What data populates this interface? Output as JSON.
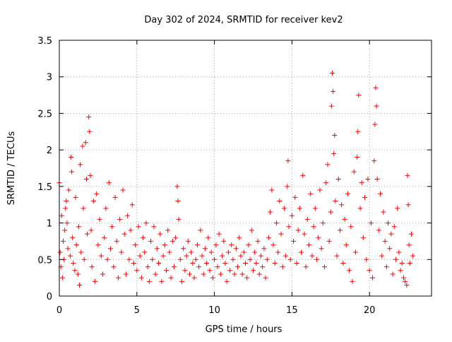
{
  "chart_data": {
    "type": "scatter",
    "title": "Day 302 of 2024, SRMTID for receiver kev2",
    "xlabel": "GPS time / hours",
    "ylabel": "SRMTID / TECUs",
    "xlim": [
      0,
      24
    ],
    "ylim": [
      0,
      3.5
    ],
    "x_ticks": [
      0,
      5,
      10,
      15,
      20
    ],
    "x_tick_labels": [
      "0",
      "5",
      "10",
      "15",
      "20"
    ],
    "y_ticks": [
      0,
      0.5,
      1,
      1.5,
      2,
      2.5,
      3,
      3.5
    ],
    "y_tick_labels": [
      "0",
      "0.5",
      "1",
      "1.5",
      "2",
      "2.5",
      "3",
      "3.5"
    ],
    "grid": true,
    "marker": "+",
    "marker_color": "#ff0000",
    "series": [
      {
        "name": "SRMTID",
        "color": "#ff0000",
        "points": [
          [
            0.0,
            1.55
          ],
          [
            0.05,
            0.6
          ],
          [
            0.1,
            0.4
          ],
          [
            0.15,
            1.1
          ],
          [
            0.2,
            0.25
          ],
          [
            0.25,
            0.75
          ],
          [
            0.3,
            0.5
          ],
          [
            0.35,
            0.9
          ],
          [
            0.4,
            1.2
          ],
          [
            0.45,
            1.3
          ],
          [
            0.5,
            1.0
          ],
          [
            0.55,
            0.65
          ],
          [
            0.6,
            1.45
          ],
          [
            0.7,
            0.55
          ],
          [
            0.75,
            1.9
          ],
          [
            0.8,
            1.7
          ],
          [
            0.85,
            0.8
          ],
          [
            0.9,
            0.45
          ],
          [
            1.0,
            0.35
          ],
          [
            1.05,
            1.35
          ],
          [
            1.1,
            0.7
          ],
          [
            1.2,
            0.3
          ],
          [
            1.25,
            0.95
          ],
          [
            1.3,
            0.15
          ],
          [
            1.35,
            1.8
          ],
          [
            1.4,
            0.6
          ],
          [
            1.5,
            2.05
          ],
          [
            1.55,
            1.2
          ],
          [
            1.6,
            0.5
          ],
          [
            1.7,
            2.1
          ],
          [
            1.75,
            1.6
          ],
          [
            1.8,
            0.85
          ],
          [
            1.9,
            2.45
          ],
          [
            1.95,
            2.25
          ],
          [
            2.0,
            1.65
          ],
          [
            2.05,
            0.9
          ],
          [
            2.1,
            0.4
          ],
          [
            2.2,
            1.3
          ],
          [
            2.3,
            0.2
          ],
          [
            2.4,
            1.4
          ],
          [
            2.5,
            0.7
          ],
          [
            2.6,
            1.05
          ],
          [
            2.7,
            0.55
          ],
          [
            2.8,
            0.3
          ],
          [
            2.9,
            0.8
          ],
          [
            3.0,
            1.2
          ],
          [
            3.1,
            0.5
          ],
          [
            3.2,
            1.55
          ],
          [
            3.3,
            0.65
          ],
          [
            3.4,
            0.95
          ],
          [
            3.5,
            0.4
          ],
          [
            3.6,
            1.35
          ],
          [
            3.7,
            0.75
          ],
          [
            3.8,
            0.25
          ],
          [
            3.9,
            1.05
          ],
          [
            4.0,
            0.6
          ],
          [
            4.1,
            1.45
          ],
          [
            4.2,
            0.85
          ],
          [
            4.3,
            0.3
          ],
          [
            4.4,
            1.1
          ],
          [
            4.5,
            0.5
          ],
          [
            4.6,
            0.9
          ],
          [
            4.7,
            1.25
          ],
          [
            4.8,
            0.45
          ],
          [
            4.9,
            0.7
          ],
          [
            5.0,
            0.35
          ],
          [
            5.1,
            0.95
          ],
          [
            5.2,
            0.55
          ],
          [
            5.3,
            0.25
          ],
          [
            5.4,
            0.8
          ],
          [
            5.5,
            0.6
          ],
          [
            5.6,
            1.0
          ],
          [
            5.7,
            0.4
          ],
          [
            5.8,
            0.2
          ],
          [
            5.9,
            0.75
          ],
          [
            6.0,
            0.5
          ],
          [
            6.1,
            0.95
          ],
          [
            6.2,
            0.3
          ],
          [
            6.3,
            0.65
          ],
          [
            6.4,
            0.45
          ],
          [
            6.5,
            0.85
          ],
          [
            6.6,
            0.2
          ],
          [
            6.7,
            0.55
          ],
          [
            6.8,
            0.7
          ],
          [
            6.9,
            0.35
          ],
          [
            7.0,
            0.9
          ],
          [
            7.1,
            0.6
          ],
          [
            7.2,
            0.25
          ],
          [
            7.3,
            0.75
          ],
          [
            7.4,
            0.4
          ],
          [
            7.5,
            0.8
          ],
          [
            7.6,
            1.5
          ],
          [
            7.65,
            1.3
          ],
          [
            7.7,
            1.05
          ],
          [
            7.8,
            0.5
          ],
          [
            7.9,
            0.2
          ],
          [
            8.0,
            0.65
          ],
          [
            8.1,
            0.35
          ],
          [
            8.2,
            0.55
          ],
          [
            8.3,
            0.75
          ],
          [
            8.4,
            0.3
          ],
          [
            8.5,
            0.6
          ],
          [
            8.6,
            0.45
          ],
          [
            8.7,
            0.25
          ],
          [
            8.8,
            0.5
          ],
          [
            8.9,
            0.7
          ],
          [
            9.0,
            0.4
          ],
          [
            9.1,
            0.9
          ],
          [
            9.2,
            0.55
          ],
          [
            9.3,
            0.3
          ],
          [
            9.4,
            0.65
          ],
          [
            9.5,
            0.45
          ],
          [
            9.6,
            0.8
          ],
          [
            9.7,
            0.35
          ],
          [
            9.8,
            0.6
          ],
          [
            9.9,
            0.25
          ],
          [
            10.0,
            0.5
          ],
          [
            10.1,
            0.7
          ],
          [
            10.2,
            0.4
          ],
          [
            10.3,
            0.85
          ],
          [
            10.4,
            0.3
          ],
          [
            10.5,
            0.55
          ],
          [
            10.6,
            0.75
          ],
          [
            10.7,
            0.45
          ],
          [
            10.8,
            0.2
          ],
          [
            10.9,
            0.6
          ],
          [
            11.0,
            0.35
          ],
          [
            11.1,
            0.7
          ],
          [
            11.2,
            0.5
          ],
          [
            11.3,
            0.3
          ],
          [
            11.4,
            0.65
          ],
          [
            11.5,
            0.4
          ],
          [
            11.6,
            0.8
          ],
          [
            11.7,
            0.55
          ],
          [
            11.8,
            0.3
          ],
          [
            11.9,
            0.6
          ],
          [
            12.0,
            0.45
          ],
          [
            12.1,
            0.25
          ],
          [
            12.2,
            0.7
          ],
          [
            12.3,
            0.5
          ],
          [
            12.4,
            0.9
          ],
          [
            12.5,
            0.35
          ],
          [
            12.6,
            0.6
          ],
          [
            12.7,
            0.45
          ],
          [
            12.8,
            0.75
          ],
          [
            12.9,
            0.3
          ],
          [
            13.0,
            0.55
          ],
          [
            13.1,
            0.4
          ],
          [
            13.2,
            0.65
          ],
          [
            13.3,
            0.25
          ],
          [
            13.4,
            0.5
          ],
          [
            13.5,
            0.8
          ],
          [
            13.6,
            1.15
          ],
          [
            13.7,
            1.45
          ],
          [
            13.8,
            0.7
          ],
          [
            13.9,
            0.45
          ],
          [
            14.0,
            1.0
          ],
          [
            14.1,
            0.6
          ],
          [
            14.2,
            1.3
          ],
          [
            14.3,
            0.85
          ],
          [
            14.4,
            0.4
          ],
          [
            14.5,
            1.2
          ],
          [
            14.6,
            0.55
          ],
          [
            14.7,
            1.5
          ],
          [
            14.75,
            1.85
          ],
          [
            14.8,
            0.95
          ],
          [
            14.9,
            0.5
          ],
          [
            15.0,
            1.1
          ],
          [
            15.1,
            0.75
          ],
          [
            15.2,
            1.35
          ],
          [
            15.3,
            0.45
          ],
          [
            15.4,
            0.9
          ],
          [
            15.5,
            1.2
          ],
          [
            15.6,
            0.6
          ],
          [
            15.7,
            1.65
          ],
          [
            15.8,
            0.85
          ],
          [
            15.9,
            0.4
          ],
          [
            16.0,
            1.05
          ],
          [
            16.1,
            0.7
          ],
          [
            16.2,
            1.4
          ],
          [
            16.3,
            0.55
          ],
          [
            16.4,
            0.95
          ],
          [
            16.5,
            1.2
          ],
          [
            16.6,
            0.5
          ],
          [
            16.7,
            0.8
          ],
          [
            16.8,
            1.45
          ],
          [
            16.9,
            0.65
          ],
          [
            17.0,
            1.0
          ],
          [
            17.1,
            0.4
          ],
          [
            17.2,
            1.55
          ],
          [
            17.3,
            1.8
          ],
          [
            17.4,
            0.75
          ],
          [
            17.5,
            1.15
          ],
          [
            17.55,
            2.6
          ],
          [
            17.6,
            3.05
          ],
          [
            17.65,
            2.8
          ],
          [
            17.7,
            1.95
          ],
          [
            17.75,
            2.2
          ],
          [
            17.8,
            1.3
          ],
          [
            17.9,
            0.55
          ],
          [
            18.0,
            1.6
          ],
          [
            18.1,
            0.9
          ],
          [
            18.2,
            1.25
          ],
          [
            18.3,
            0.45
          ],
          [
            18.4,
            1.05
          ],
          [
            18.5,
            0.7
          ],
          [
            18.6,
            1.4
          ],
          [
            18.7,
            0.35
          ],
          [
            18.8,
            0.95
          ],
          [
            18.9,
            0.2
          ],
          [
            19.0,
            1.7
          ],
          [
            19.1,
            0.6
          ],
          [
            19.2,
            1.9
          ],
          [
            19.25,
            2.25
          ],
          [
            19.3,
            2.75
          ],
          [
            19.4,
            1.2
          ],
          [
            19.5,
            1.55
          ],
          [
            19.6,
            0.8
          ],
          [
            19.7,
            1.35
          ],
          [
            19.8,
            0.5
          ],
          [
            19.9,
            1.6
          ],
          [
            20.0,
            0.35
          ],
          [
            20.1,
            1.0
          ],
          [
            20.2,
            0.25
          ],
          [
            20.3,
            1.85
          ],
          [
            20.35,
            2.35
          ],
          [
            20.4,
            2.85
          ],
          [
            20.45,
            2.6
          ],
          [
            20.5,
            1.6
          ],
          [
            20.6,
            0.9
          ],
          [
            20.7,
            1.4
          ],
          [
            20.8,
            0.55
          ],
          [
            20.9,
            1.15
          ],
          [
            21.0,
            0.75
          ],
          [
            21.1,
            0.4
          ],
          [
            21.2,
            1.0
          ],
          [
            21.3,
            0.65
          ],
          [
            21.4,
            0.85
          ],
          [
            21.5,
            0.3
          ],
          [
            21.6,
            0.95
          ],
          [
            21.7,
            0.5
          ],
          [
            21.8,
            1.2
          ],
          [
            21.9,
            0.6
          ],
          [
            22.0,
            0.35
          ],
          [
            22.1,
            0.45
          ],
          [
            22.2,
            0.25
          ],
          [
            22.3,
            0.2
          ],
          [
            22.4,
            0.15
          ],
          [
            22.45,
            1.65
          ],
          [
            22.5,
            1.25
          ],
          [
            22.55,
            0.7
          ],
          [
            22.6,
            0.45
          ],
          [
            22.7,
            0.85
          ],
          [
            22.8,
            0.55
          ]
        ]
      }
    ]
  }
}
